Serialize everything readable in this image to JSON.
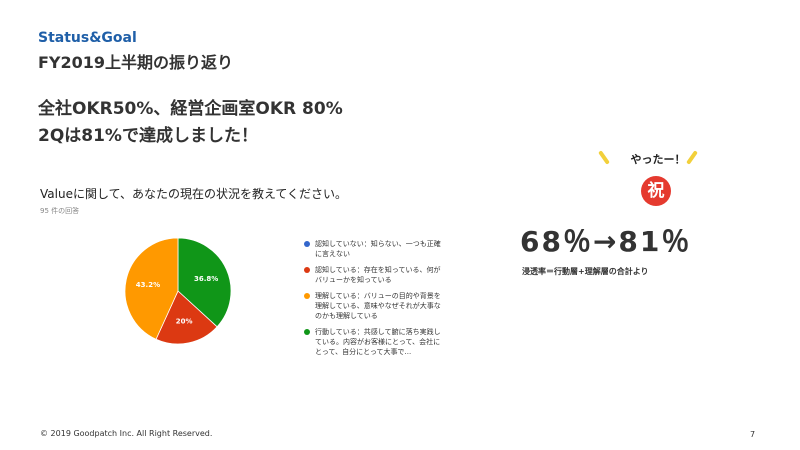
{
  "header": {
    "kicker": "Status&Goal",
    "title": "FY2019上半期の振り返り"
  },
  "headline": {
    "line1": "全社OKR50%、経営企画室OKR 80%",
    "line2": "2Qは81%で達成しました！"
  },
  "survey": {
    "question": "Valueに関して、あなたの現在の状況を教えてください。",
    "response_count": "95 件の回答"
  },
  "chart_data": {
    "type": "pie",
    "title": "",
    "slices": [
      {
        "label": "認知していない：知らない、一つも正確に言えない",
        "value": 0,
        "display": "",
        "color": "#3366cc"
      },
      {
        "label": "認知している：存在を知っている、何がバリューかを知っている",
        "value": 0,
        "display": "",
        "color": "#dc3912"
      },
      {
        "label": "理解している：バリューの目的や背景を理解している、意味やなぜそれが大事なのかも理解している",
        "value": 43.2,
        "display": "43.2%",
        "color": "#ff9900"
      },
      {
        "label": "行動している：共感して腑に落ち実践している。内容がお客様にとって、会社にとって、自分にとって大事で...",
        "value": 36.8,
        "display": "36.8%",
        "color": "#109618"
      },
      {
        "label": "",
        "value": 20,
        "display": "20%",
        "color": "#dc3912"
      }
    ],
    "legend_position": "right"
  },
  "legend": [
    {
      "text": "認知していない：知らない、一つも正確に言えない",
      "color": "#3366cc"
    },
    {
      "text": "認知している：存在を知っている、何がバリューかを知っている",
      "color": "#dc3912"
    },
    {
      "text": "理解している：バリューの目的や背景を理解している、意味やなぜそれが大事なのかも理解している",
      "color": "#ff9900"
    },
    {
      "text": "行動している：共感して腑に落ち実践している。内容がお客様にとって、会社にとって、自分にとって大事で...",
      "color": "#109618"
    }
  ],
  "celebration": {
    "exclaim": "やったー！",
    "badge": "祝",
    "stat": "68％→81％",
    "note": "浸透率＝行動層+理解層の合計より"
  },
  "footer": {
    "copyright": "© 2019 Goodpatch Inc. All Right Reserved.",
    "page": "7"
  }
}
